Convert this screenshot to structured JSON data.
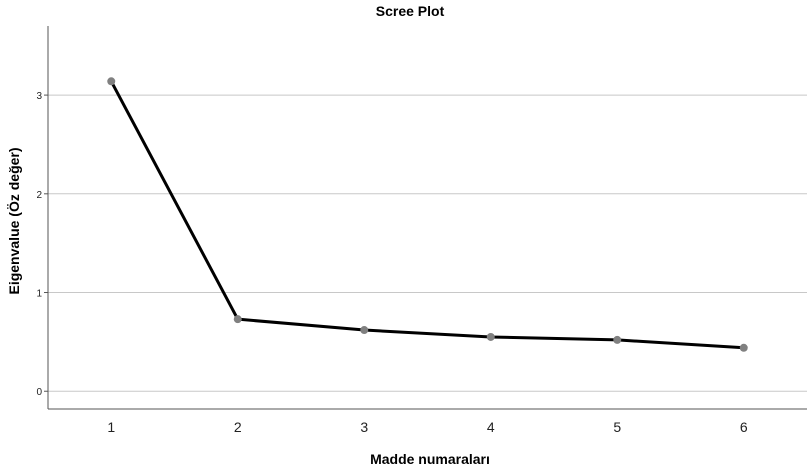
{
  "chart_data": {
    "type": "line",
    "title": "Scree Plot",
    "xlabel": "Madde numaraları",
    "ylabel": "Eigenvalue (Öz değer)",
    "x": [
      1,
      2,
      3,
      4,
      5,
      6
    ],
    "series": [
      {
        "values": [
          3.14,
          0.73,
          0.62,
          0.55,
          0.52,
          0.44
        ]
      }
    ],
    "x_ticks": [
      "1",
      "2",
      "3",
      "4",
      "5",
      "6"
    ],
    "y_ticks": [
      "0",
      "1",
      "2",
      "3"
    ],
    "xlim": [
      0.5,
      6.5
    ],
    "ylim": [
      -0.18,
      3.7
    ],
    "grid": "horizontal",
    "line_color": "#000000",
    "marker_color": "#808080",
    "grid_color": "#c8c8c8"
  }
}
